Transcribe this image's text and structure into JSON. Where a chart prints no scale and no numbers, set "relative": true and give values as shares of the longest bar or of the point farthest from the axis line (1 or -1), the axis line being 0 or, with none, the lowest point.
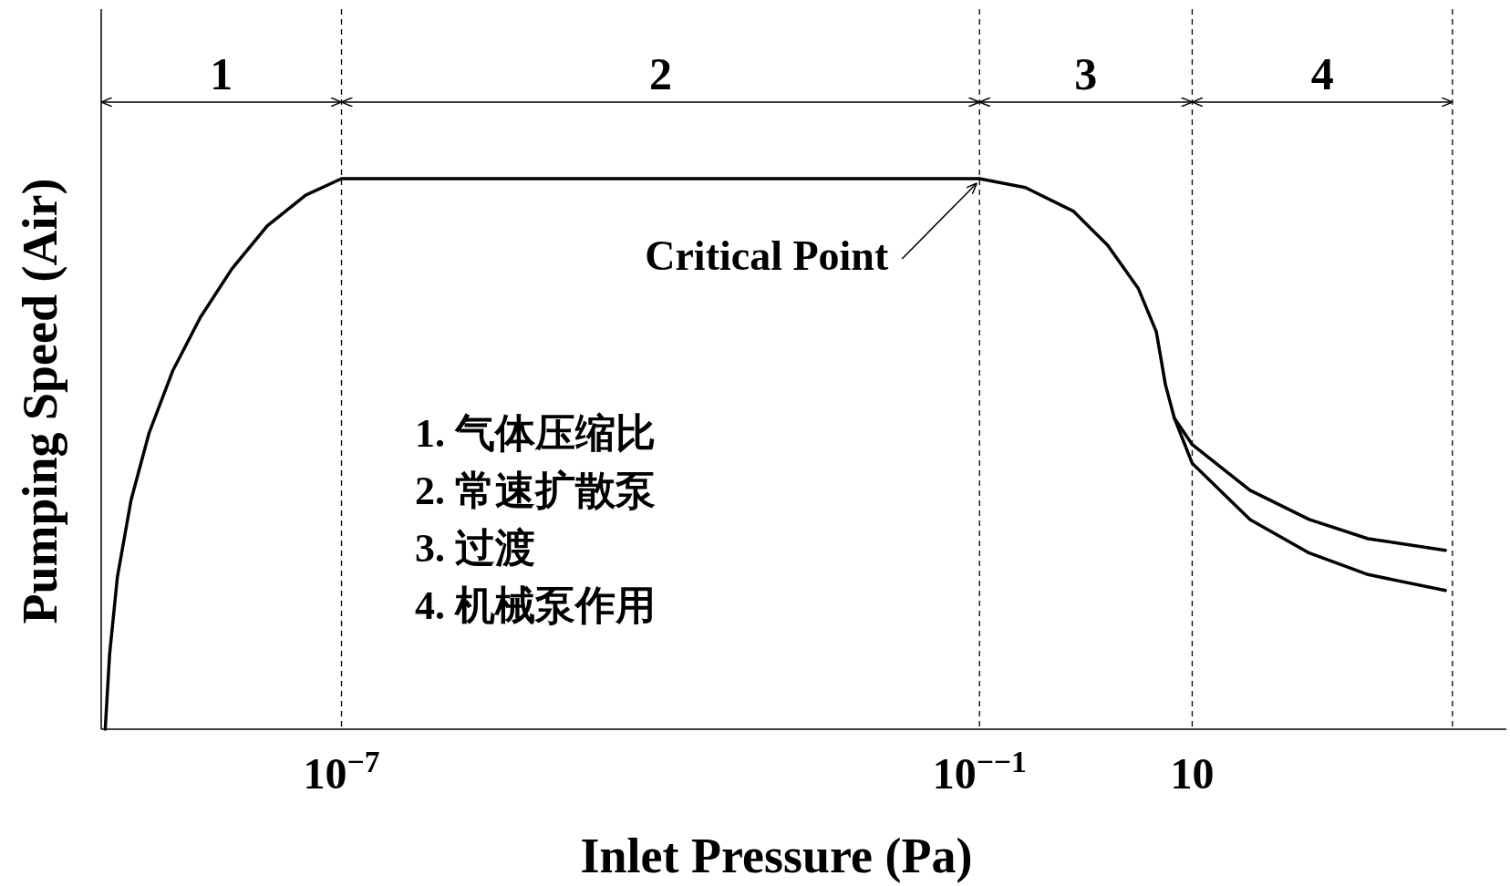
{
  "chart_data": {
    "type": "line",
    "xlabel": "Inlet Pressure (Pa)",
    "ylabel": "Pumping Speed (Air)",
    "relative": true,
    "log": "x",
    "xlim": [
      5.5e-10,
      9000
    ],
    "xticks": [
      {
        "value": 1e-07,
        "label": "10$^{−7}$"
      },
      {
        "value": 0.1,
        "label": "10$^{−−1}$"
      },
      10
    ],
    "series": [
      {
        "color": "#000000",
        "x": [
          6e-10,
          6.6e-10,
          7.8e-10,
          1.05e-09,
          1.55e-09,
          2.6e-09,
          4.7e-09,
          9.3e-09,
          2e-08,
          4.6e-08,
          1e-07,
          0.1,
          0.27,
          0.76,
          1.6,
          3.1,
          4.6,
          5.6,
          6.8,
          10,
          35,
          126,
          450,
          2400
        ],
        "values": [
          0,
          0.136,
          0.276,
          0.416,
          0.538,
          0.652,
          0.748,
          0.836,
          0.914,
          0.97,
          1,
          1,
          0.984,
          0.941,
          0.879,
          0.801,
          0.722,
          0.626,
          0.565,
          0.517,
          0.434,
          0.381,
          0.346,
          0.325
        ]
      },
      {
        "color": "#000000",
        "x": [
          6.8,
          10,
          35,
          126,
          450,
          2400
        ],
        "values": [
          0.565,
          0.483,
          0.381,
          0.32,
          0.281,
          0.252
        ]
      }
    ],
    "ref_lines": [
      {
        "axis": "x",
        "value": 1e-07,
        "line_style": "dashed"
      },
      {
        "axis": "x",
        "value": 0.1,
        "line_style": "dashed"
      },
      {
        "axis": "x",
        "value": 10,
        "line_style": "dashed"
      },
      {
        "axis": "x",
        "value": 2800,
        "line_style": "dashed"
      }
    ],
    "annotations": [
      {
        "text": "Critical Point",
        "x": 0.1,
        "y": 1
      },
      "1",
      "2",
      "3",
      "4",
      "1. 气体压缩比",
      "2.  常速扩散泵",
      "3.  过渡",
      "4.  机械泵作用"
    ]
  }
}
